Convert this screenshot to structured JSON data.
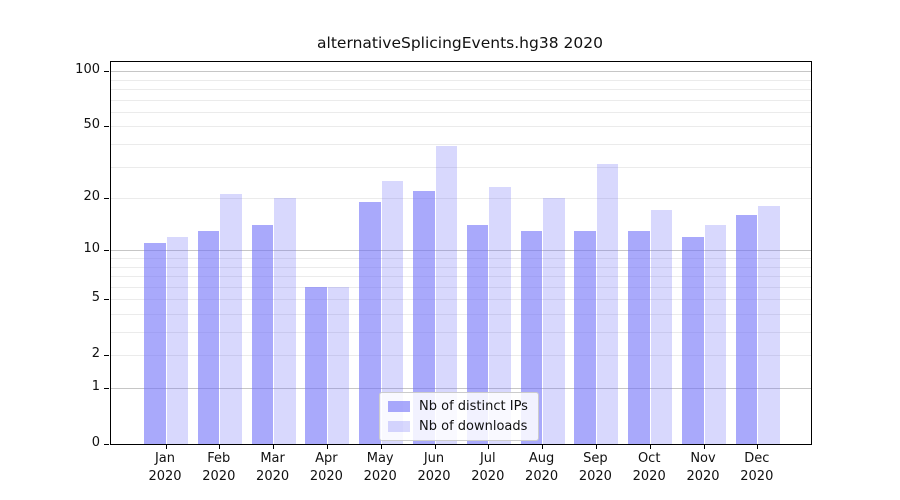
{
  "chart_data": {
    "type": "bar",
    "title": "alternativeSplicingEvents.hg38 2020",
    "categories": [
      "Jan",
      "Feb",
      "Mar",
      "Apr",
      "May",
      "Jun",
      "Jul",
      "Aug",
      "Sep",
      "Oct",
      "Nov",
      "Dec"
    ],
    "x_year_label": "2020",
    "series": [
      {
        "key": "distinct-ips",
        "name": "Nb of distinct IPs",
        "color": "#7070f8",
        "fill_opacity": 0.6,
        "effective_color": "#a9a9fb",
        "values": [
          11,
          13,
          14,
          6,
          19,
          22,
          14,
          13,
          13,
          13,
          12,
          16
        ]
      },
      {
        "key": "downloads",
        "name": "Nb of downloads",
        "color": "#7070f8",
        "fill_opacity": 0.27,
        "effective_color": "#d8d8fd",
        "values": [
          12,
          21,
          20,
          6,
          25,
          39,
          23,
          20,
          31,
          17,
          14,
          18
        ]
      }
    ],
    "xlabel": "",
    "ylabel": "",
    "yscale": "symlog (position proportional to log10(1+value))",
    "yticks": [
      0,
      1,
      2,
      5,
      10,
      20,
      50,
      100
    ],
    "ylim": [
      0,
      112
    ],
    "grid": {
      "orientation": "horizontal",
      "major_values": [
        1,
        10,
        100
      ],
      "minor_values": [
        2,
        3,
        4,
        5,
        6,
        7,
        8,
        9,
        20,
        30,
        40,
        50,
        60,
        70,
        80,
        90
      ]
    },
    "legend": {
      "position": "lower center"
    }
  }
}
